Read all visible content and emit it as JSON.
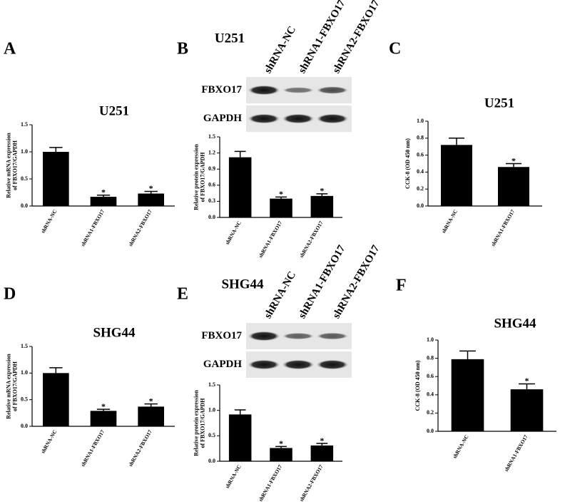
{
  "chart_data": [
    {
      "type": "bar",
      "panel": "A",
      "title": "U251",
      "ylabel": [
        "Relative mRNA expression",
        "of FBXO17/GAPDH"
      ],
      "categories": [
        "shRNA-NC",
        "shRNA1-FBXO17",
        "shRNA2-FBXO17"
      ],
      "values": [
        1.0,
        0.17,
        0.23
      ],
      "errors": [
        0.08,
        0.03,
        0.04
      ],
      "annotations": [
        {
          "index": 1,
          "text": "*"
        },
        {
          "index": 2,
          "text": "*"
        }
      ],
      "color": "#000000",
      "ylim": [
        0,
        1.5
      ],
      "yticks": [
        {
          "value": 0,
          "label": "0.0"
        },
        {
          "value": 0.5,
          "label": "0.5"
        },
        {
          "value": 1,
          "label": "1.0"
        },
        {
          "value": 1.5,
          "label": "1.5"
        }
      ]
    },
    {
      "type": "bar",
      "ylabel": [
        "Relative protein expression",
        "of FBXO17/GAPDH"
      ],
      "categories": [
        "shRNA-NC",
        "shRNA1-FBXO17",
        "shRNA2-FBXO17"
      ],
      "values": [
        1.12,
        0.35,
        0.4
      ],
      "errors": [
        0.11,
        0.03,
        0.04
      ],
      "annotations": [
        {
          "index": 1,
          "text": "*"
        },
        {
          "index": 2,
          "text": "*"
        }
      ],
      "color": "#000000",
      "ylim": [
        0,
        1.5
      ],
      "yticks": [
        {
          "value": 0,
          "label": "0.0"
        },
        0.3,
        0.6,
        0.9,
        1.2,
        1.5
      ]
    },
    {
      "type": "bar",
      "panel": "C",
      "title": "U251",
      "ylabel": [
        "CCK-8 (OD 450 nm)"
      ],
      "categories": [
        "shRNA-NC",
        "shRNA1-FBXO17"
      ],
      "values": [
        0.72,
        0.46
      ],
      "errors": [
        0.08,
        0.04
      ],
      "annotations": [
        {
          "index": 1,
          "text": "*"
        }
      ],
      "color": "#000000",
      "ylim": [
        0,
        1
      ],
      "yticks": [
        {
          "value": 0,
          "label": "0.0"
        },
        0.2,
        0.4,
        0.6,
        0.8,
        {
          "value": 1,
          "label": "1.0"
        }
      ]
    },
    {
      "type": "bar",
      "panel": "D",
      "title": "SHG44",
      "ylabel": [
        "Relative mRNA expression",
        "of FBXO17/GAPDH"
      ],
      "categories": [
        "shRNA-NC",
        "shRNA1-FBXO17",
        "shRNA2-FBXO17"
      ],
      "values": [
        1.0,
        0.29,
        0.37
      ],
      "errors": [
        0.1,
        0.03,
        0.05
      ],
      "annotations": [
        {
          "index": 1,
          "text": "*"
        },
        {
          "index": 2,
          "text": "*"
        }
      ],
      "color": "#000000",
      "ylim": [
        0,
        1.5
      ],
      "yticks": [
        {
          "value": 0,
          "label": "0.0"
        },
        {
          "value": 0.5,
          "label": "0.5"
        },
        {
          "value": 1,
          "label": "1.0"
        },
        {
          "value": 1.5,
          "label": "1.5"
        }
      ]
    },
    {
      "type": "bar",
      "ylabel": [
        "Relative protein expression",
        "of FBXO17/GAPDH"
      ],
      "categories": [
        "shRNA-NC",
        "shRNA1-FBXO17",
        "shRNA2-FBXO17"
      ],
      "values": [
        0.92,
        0.26,
        0.31
      ],
      "errors": [
        0.09,
        0.03,
        0.04
      ],
      "annotations": [
        {
          "index": 1,
          "text": "*"
        },
        {
          "index": 2,
          "text": "*"
        }
      ],
      "color": "#000000",
      "ylim": [
        0,
        1.5
      ],
      "yticks": [
        {
          "value": 0,
          "label": "0.0"
        },
        {
          "value": 0.5,
          "label": "0.5"
        },
        {
          "value": 1,
          "label": "1.0"
        },
        {
          "value": 1.5,
          "label": "1.5"
        }
      ]
    },
    {
      "type": "bar",
      "panel": "F",
      "title": "SHG44",
      "ylabel": [
        "CCK-8 (OD 450 nm)"
      ],
      "categories": [
        "shRNA-NC",
        "shRNA1-FBXO17"
      ],
      "values": [
        0.79,
        0.46
      ],
      "errors": [
        0.09,
        0.06
      ],
      "annotations": [
        {
          "index": 1,
          "text": "*"
        }
      ],
      "color": "#000000",
      "ylim": [
        0,
        1
      ],
      "yticks": [
        {
          "value": 0,
          "label": "0.0"
        },
        0.2,
        0.4,
        0.6,
        0.8,
        {
          "value": 1,
          "label": "1.0"
        }
      ]
    }
  ],
  "blots": [
    {
      "panel": "B",
      "title": "U251",
      "lanes": [
        "shRNA-NC",
        "shRNA1-FBXO17",
        "shRNA2-FBXO17"
      ],
      "rows": [
        "FBXO17",
        "GAPDH"
      ]
    },
    {
      "panel": "E",
      "title": "SHG44",
      "lanes": [
        "shRNA-NC",
        "shRNA1-FBXO17",
        "shRNA2-FBXO17"
      ],
      "rows": [
        "FBXO17",
        "GAPDH"
      ]
    }
  ]
}
